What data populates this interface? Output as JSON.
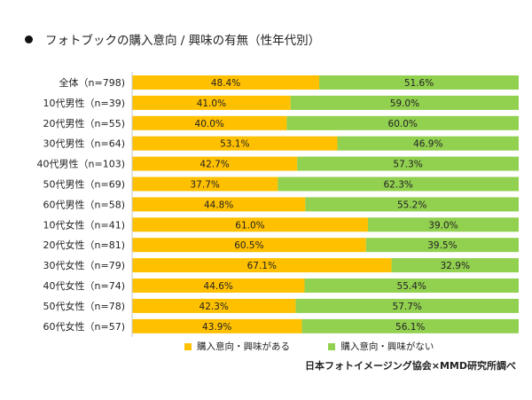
{
  "chart_data": {
    "type": "bar",
    "stacked": true,
    "orientation": "horizontal",
    "percent": true,
    "title": "フォトブックの購入意向 / 興味の有無（性年代別）",
    "categories": [
      "全体（n=798)",
      "10代男性（n=39)",
      "20代男性（n=55)",
      "30代男性（n=64)",
      "40代男性（n=103)",
      "50代男性（n=69)",
      "60代男性（n=58)",
      "10代女性（n=41)",
      "20代女性（n=81)",
      "30代女性（n=79)",
      "40代女性（n=74)",
      "50代女性（n=78)",
      "60代女性（n=57)"
    ],
    "series": [
      {
        "name": "購入意向・興味がある",
        "color": "#ffc000",
        "values": [
          48.4,
          41.0,
          40.0,
          53.1,
          42.7,
          37.7,
          44.8,
          61.0,
          60.5,
          67.1,
          44.6,
          42.3,
          43.9
        ],
        "labels": [
          "48.4%",
          "41.0%",
          "40.0%",
          "53.1%",
          "42.7%",
          "37.7%",
          "44.8%",
          "61.0%",
          "60.5%",
          "67.1%",
          "44.6%",
          "42.3%",
          "43.9%"
        ]
      },
      {
        "name": "購入意向・興味がない",
        "color": "#92d050",
        "values": [
          51.6,
          59.0,
          60.0,
          46.9,
          57.3,
          62.3,
          55.2,
          39.0,
          39.5,
          32.9,
          55.4,
          57.7,
          56.1
        ],
        "labels": [
          "51.6%",
          "59.0%",
          "60.0%",
          "46.9%",
          "57.3%",
          "62.3%",
          "55.2%",
          "39.0%",
          "39.5%",
          "32.9%",
          "55.4%",
          "57.7%",
          "56.1%"
        ]
      }
    ],
    "xlim": [
      0,
      100
    ],
    "legend": "bottom",
    "grid": false
  },
  "source": "日本フォトイメージング協会×MMD研究所調べ"
}
